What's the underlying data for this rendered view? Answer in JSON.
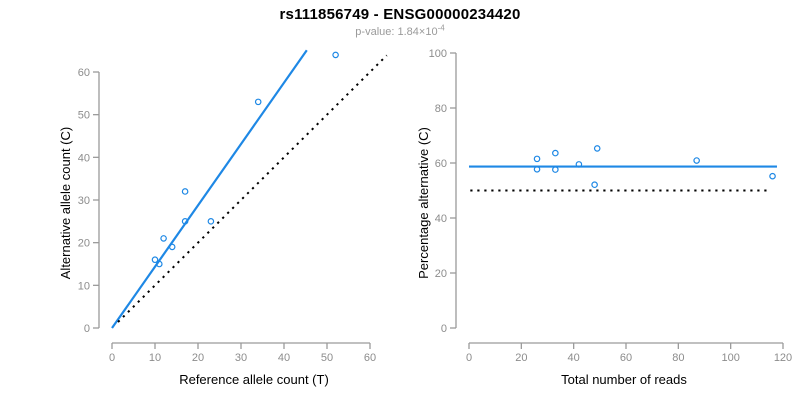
{
  "header": {
    "title": "rs111856749 - ENSG00000234420",
    "pvalue_label": "p-value: ",
    "pvalue_base": "1.84×10",
    "pvalue_exponent": "-4"
  },
  "colors": {
    "accent_blue": "#1E88E5",
    "line_black": "#000000",
    "axis_gray": "#9a9a9a",
    "tick_text_gray": "#8c8c8c",
    "axis_title_black": "#000000"
  },
  "chart_data": [
    {
      "type": "scatter",
      "panel": "left",
      "title": "",
      "xlabel": "Reference allele count (T)",
      "ylabel": "Alternative allele count (C)",
      "xlim": [
        0,
        60
      ],
      "ylim": [
        0,
        60
      ],
      "xticks": [
        0,
        10,
        20,
        30,
        40,
        50,
        60
      ],
      "yticks": [
        0,
        10,
        20,
        30,
        40,
        50,
        60
      ],
      "grid": false,
      "legend": null,
      "points": [
        [
          10,
          16
        ],
        [
          11,
          15
        ],
        [
          12,
          21
        ],
        [
          14,
          19
        ],
        [
          17,
          25
        ],
        [
          17,
          32
        ],
        [
          23,
          25
        ],
        [
          34,
          53
        ],
        [
          52,
          64
        ]
      ],
      "lines": [
        {
          "name": "fit-line",
          "style": "solid",
          "color": "blue",
          "x1": 0,
          "y1": 0,
          "x2": 45.3,
          "y2": 65.1
        },
        {
          "name": "identity-line",
          "style": "dotted",
          "color": "black",
          "x1": 1.4,
          "y1": 1.4,
          "x2": 63.9,
          "y2": 63.9
        }
      ]
    },
    {
      "type": "scatter",
      "panel": "right",
      "title": "",
      "xlabel": "Total number of reads",
      "ylabel": "Percentage alternative (C)",
      "xlim": [
        0,
        120
      ],
      "ylim": [
        0,
        100
      ],
      "xticks": [
        0,
        20,
        40,
        60,
        80,
        100,
        120
      ],
      "yticks": [
        0,
        20,
        40,
        60,
        80,
        100
      ],
      "grid": false,
      "legend": null,
      "points": [
        [
          26,
          61.5
        ],
        [
          26,
          57.7
        ],
        [
          33,
          63.6
        ],
        [
          33,
          57.6
        ],
        [
          42,
          59.5
        ],
        [
          48,
          52.1
        ],
        [
          49,
          65.3
        ],
        [
          87,
          60.9
        ],
        [
          116,
          55.2
        ]
      ],
      "lines": [
        {
          "name": "mean-percentage-line",
          "style": "solid",
          "color": "blue",
          "x1": 0,
          "y1": 58.7,
          "x2": 117.7,
          "y2": 58.7
        },
        {
          "name": "fifty-percent-line",
          "style": "dotted",
          "color": "black",
          "x1": 0.5,
          "y1": 50,
          "x2": 114.5,
          "y2": 50
        }
      ]
    }
  ]
}
